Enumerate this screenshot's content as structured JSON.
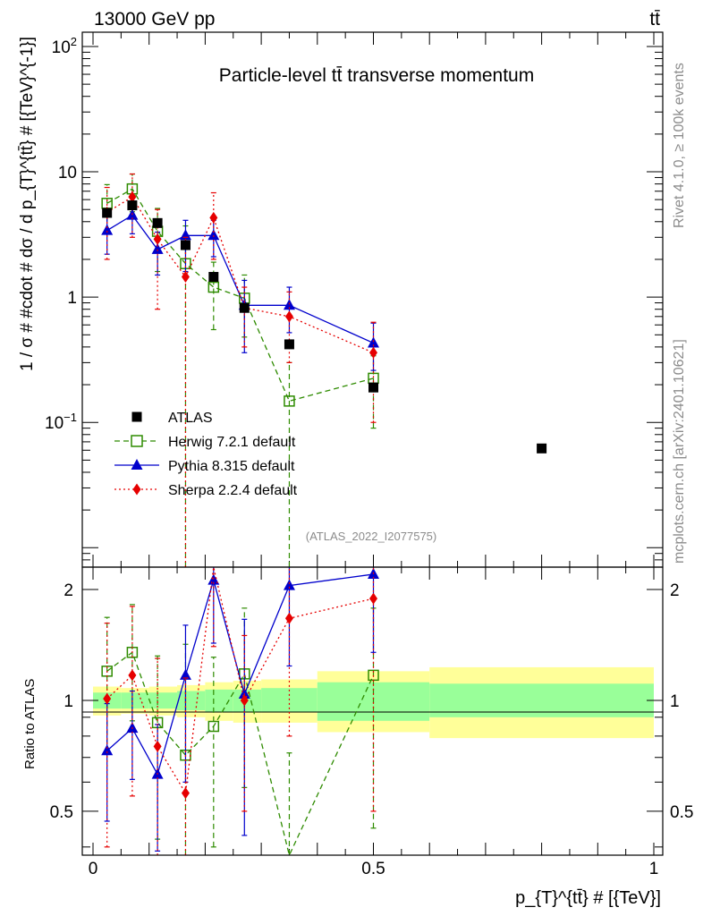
{
  "header": {
    "energy_label": "13000 GeV pp",
    "process_label": "tt̄"
  },
  "side_texts": {
    "rivet": "Rivet 4.1.0, ≥ 100k events",
    "mcplots": "mcplots.cern.ch [arXiv:2401.10621]"
  },
  "chart_data": {
    "type": "scatter",
    "title": "Particle-level tt̄ transverse momentum",
    "analysis_label": "(ATLAS_2022_I2077575)",
    "xlabel": "p_{T}^{tt̄} # [{TeV}]",
    "ylabel": "1 / σ # #cdot # dσ / d p_{T}^{tt̄} # [{TeV}^{-1}]",
    "ratio_ylabel": "Ratio to ATLAS",
    "xlim": [
      0,
      1
    ],
    "ylim_main": [
      0.007,
      130
    ],
    "ylim_ratio": [
      0.38,
      2.3
    ],
    "y_scale": "log",
    "x_ticks": [
      {
        "v": 0,
        "label": "0"
      },
      {
        "v": 0.5,
        "label": "0.5"
      },
      {
        "v": 1,
        "label": "1"
      }
    ],
    "y_ticks_main": [
      {
        "v": 100,
        "base": "10",
        "exp": "2"
      },
      {
        "v": 10,
        "base": "10",
        "exp": ""
      },
      {
        "v": 1,
        "base": "1",
        "exp": ""
      },
      {
        "v": 0.1,
        "base": "10",
        "exp": "−1"
      }
    ],
    "y_ticks_ratio": [
      {
        "v": 2,
        "label": "2"
      },
      {
        "v": 1,
        "label": "1"
      },
      {
        "v": 0.5,
        "label": "0.5"
      }
    ],
    "legend_position": "lower-left",
    "data": {
      "name": "ATLAS",
      "color": "#000000",
      "x": [
        0.025,
        0.07,
        0.115,
        0.165,
        0.215,
        0.27,
        0.35,
        0.5,
        0.8
      ],
      "y": [
        4.7,
        5.4,
        3.9,
        2.6,
        1.45,
        0.82,
        0.42,
        0.19,
        0.062
      ]
    },
    "ratio_bands": [
      {
        "x0": 0.0,
        "x1": 0.05,
        "inner": [
          0.95,
          1.05
        ],
        "outer": [
          0.91,
          1.09
        ]
      },
      {
        "x0": 0.05,
        "x1": 0.1,
        "inner": [
          0.95,
          1.05
        ],
        "outer": [
          0.92,
          1.08
        ]
      },
      {
        "x0": 0.1,
        "x1": 0.15,
        "inner": [
          0.95,
          1.05
        ],
        "outer": [
          0.91,
          1.09
        ]
      },
      {
        "x0": 0.15,
        "x1": 0.2,
        "inner": [
          0.94,
          1.06
        ],
        "outer": [
          0.9,
          1.1
        ]
      },
      {
        "x0": 0.2,
        "x1": 0.25,
        "inner": [
          0.93,
          1.07
        ],
        "outer": [
          0.88,
          1.12
        ]
      },
      {
        "x0": 0.25,
        "x1": 0.3,
        "inner": [
          0.93,
          1.07
        ],
        "outer": [
          0.87,
          1.13
        ]
      },
      {
        "x0": 0.3,
        "x1": 0.4,
        "inner": [
          0.93,
          1.08
        ],
        "outer": [
          0.87,
          1.14
        ]
      },
      {
        "x0": 0.4,
        "x1": 0.6,
        "inner": [
          0.88,
          1.12
        ],
        "outer": [
          0.82,
          1.2
        ]
      },
      {
        "x0": 0.6,
        "x1": 1.0,
        "inner": [
          0.9,
          1.11
        ],
        "outer": [
          0.79,
          1.23
        ]
      }
    ],
    "series": [
      {
        "name": "Herwig 7.2.1 default",
        "color": "#2e8b00",
        "marker": "open-square",
        "line": "dashed",
        "x": [
          0.025,
          0.07,
          0.115,
          0.165,
          0.215,
          0.27,
          0.35,
          0.5
        ],
        "y": [
          5.6,
          7.3,
          3.35,
          1.85,
          1.2,
          0.98,
          0.148,
          0.225
        ],
        "err": [
          [
            3.4,
            7.9
          ],
          [
            4.8,
            9.6
          ],
          [
            1.6,
            5.1
          ],
          [
            0.006,
            3.7
          ],
          [
            0.55,
            1.9
          ],
          [
            0.48,
            1.5
          ],
          [
            0.001,
            0.3
          ],
          [
            0.09,
            0.34
          ]
        ],
        "ratio": [
          1.2,
          1.35,
          0.87,
          0.71,
          0.85,
          1.18,
          0.35,
          1.17
        ],
        "ratio_err": [
          [
            0.72,
            1.68
          ],
          [
            0.88,
            1.82
          ],
          [
            0.42,
            1.32
          ],
          [
            0.001,
            1.42
          ],
          [
            0.4,
            1.31
          ],
          [
            0.58,
            1.78
          ],
          [
            0.001,
            0.72
          ],
          [
            0.45,
            1.78
          ]
        ]
      },
      {
        "name": "Pythia 8.315 default",
        "color": "#0000cc",
        "marker": "filled-triangle",
        "line": "solid",
        "x": [
          0.025,
          0.07,
          0.115,
          0.165,
          0.215,
          0.27,
          0.35,
          0.5
        ],
        "y": [
          3.4,
          4.5,
          2.4,
          3.1,
          3.1,
          0.86,
          0.86,
          0.43
        ],
        "err": [
          [
            2.2,
            4.6
          ],
          [
            3.2,
            5.8
          ],
          [
            1.5,
            3.3
          ],
          [
            1.6,
            4.1
          ],
          [
            2.1,
            4.1
          ],
          [
            0.36,
            1.36
          ],
          [
            0.52,
            1.2
          ],
          [
            0.26,
            0.62
          ]
        ],
        "ratio": [
          0.73,
          0.84,
          0.63,
          1.17,
          2.12,
          1.04,
          2.05,
          2.2
        ],
        "ratio_err": [
          [
            0.47,
            0.98
          ],
          [
            0.61,
            1.06
          ],
          [
            0.39,
            0.86
          ],
          [
            0.6,
            1.6
          ],
          [
            1.43,
            2.8
          ],
          [
            0.43,
            1.66
          ],
          [
            1.24,
            2.86
          ],
          [
            1.35,
            3.0
          ]
        ]
      },
      {
        "name": "Sherpa 2.2.4 default",
        "color": "#e60000",
        "marker": "filled-diamond",
        "line": "dotted",
        "x": [
          0.025,
          0.07,
          0.115,
          0.165,
          0.215,
          0.27,
          0.35,
          0.5
        ],
        "y": [
          4.75,
          6.3,
          2.9,
          1.45,
          4.3,
          0.82,
          0.7,
          0.36
        ],
        "err": [
          [
            2.0,
            7.5
          ],
          [
            3.0,
            9.6
          ],
          [
            0.8,
            5.0
          ],
          [
            0.001,
            3.0
          ],
          [
            2.0,
            6.8
          ],
          [
            0.4,
            1.2
          ],
          [
            0.3,
            1.1
          ],
          [
            0.1,
            0.63
          ]
        ],
        "ratio": [
          1.01,
          1.17,
          0.75,
          0.56,
          2.95,
          1.0,
          1.67,
          1.89
        ],
        "ratio_err": [
          [
            0.4,
            1.62
          ],
          [
            0.55,
            1.8
          ],
          [
            0.2,
            1.3
          ],
          [
            0.001,
            1.15
          ],
          [
            1.4,
            4.5
          ],
          [
            0.5,
            1.5
          ],
          [
            0.8,
            2.6
          ],
          [
            0.5,
            3.3
          ]
        ]
      }
    ]
  }
}
